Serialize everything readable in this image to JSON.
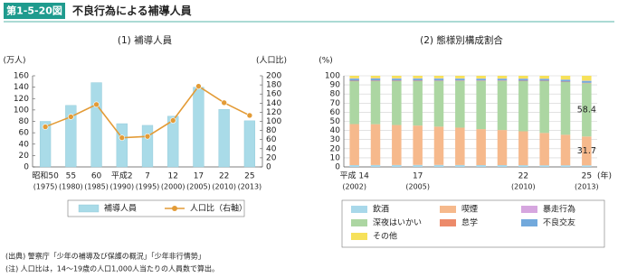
{
  "header": {
    "label": "第1-5-20図",
    "title": "不良行為による補導人員"
  },
  "chart_data": [
    {
      "type": "bar",
      "title": "(1) 補導人員",
      "y_label": "(万人)",
      "y2_label": "(人口比)",
      "categories": [
        "昭和50",
        "55",
        "60",
        "平成2",
        "7",
        "12",
        "17",
        "22",
        "25"
      ],
      "category_years": [
        "(1975)",
        "(1980)",
        "(1985)",
        "(1990)",
        "(1995)",
        "(2000)",
        "(2005)",
        "(2010)",
        "(2013)"
      ],
      "series": [
        {
          "name": "補導人員",
          "type": "bar",
          "color": "#a9dbe8",
          "values": [
            80,
            108,
            148,
            76,
            73,
            89,
            140,
            101,
            81
          ]
        },
        {
          "name": "人口比（右軸）",
          "type": "line",
          "axis": "y2",
          "color": "#e39b36",
          "values": [
            88,
            110,
            137,
            64,
            67,
            102,
            177,
            141,
            113
          ]
        }
      ],
      "ylim": [
        0,
        160
      ],
      "yticks": [
        0,
        20,
        40,
        60,
        80,
        100,
        120,
        140,
        160
      ],
      "y2lim": [
        0,
        200
      ],
      "y2ticks": [
        0,
        20,
        40,
        60,
        80,
        100,
        120,
        140,
        160,
        180,
        200
      ],
      "grid": false
    },
    {
      "type": "bar",
      "stacked": true,
      "title": "(2) 態様別構成割合",
      "y_label": "(%)",
      "x_label": "(年)",
      "categories": [
        "平成 14",
        null,
        null,
        "17",
        null,
        null,
        null,
        null,
        "22",
        null,
        null,
        "25"
      ],
      "category_years": [
        "(2002)",
        null,
        null,
        "(2005)",
        null,
        null,
        null,
        null,
        "(2010)",
        null,
        null,
        "(2013)"
      ],
      "series": [
        {
          "name": "飲酒",
          "color": "#a8d8ea",
          "values": [
            2.0,
            2.1,
            2.1,
            2.2,
            2.2,
            2.1,
            2.0,
            2.0,
            1.9,
            1.8,
            1.8,
            1.7
          ]
        },
        {
          "name": "喫煙",
          "color": "#f6b98c",
          "values": [
            45.0,
            44.8,
            43.9,
            43.2,
            42.0,
            41.0,
            39.5,
            38.5,
            37.2,
            35.5,
            33.5,
            31.7
          ],
          "value_labels": [
            null,
            null,
            null,
            null,
            null,
            null,
            null,
            null,
            null,
            null,
            null,
            "31.7"
          ]
        },
        {
          "name": "深夜はいかい",
          "color": "#acd6a2",
          "values": [
            47.0,
            47.2,
            48.1,
            48.7,
            50.0,
            51.2,
            52.8,
            53.8,
            55.0,
            56.8,
            57.8,
            58.4
          ],
          "value_labels": [
            null,
            null,
            null,
            null,
            null,
            null,
            null,
            null,
            null,
            null,
            null,
            "58.4"
          ]
        },
        {
          "name": "怠学",
          "color": "#ec8a6a",
          "values": [
            0.6,
            0.6,
            0.6,
            0.6,
            0.5,
            0.5,
            0.5,
            0.5,
            0.5,
            0.5,
            0.5,
            0.5
          ]
        },
        {
          "name": "不良交友",
          "color": "#72a9dc",
          "values": [
            2.3,
            2.3,
            2.2,
            2.2,
            2.2,
            2.1,
            2.0,
            2.0,
            2.1,
            2.0,
            2.0,
            2.1
          ]
        },
        {
          "name": "暴走行為",
          "color": "#d6a6df",
          "values": [
            0.4,
            0.4,
            0.4,
            0.4,
            0.4,
            0.3,
            0.3,
            0.3,
            0.3,
            0.3,
            0.3,
            0.3
          ]
        },
        {
          "name": "その他",
          "color": "#f6e15a",
          "values": [
            2.7,
            2.6,
            2.7,
            2.7,
            2.7,
            2.8,
            2.9,
            2.9,
            3.0,
            3.1,
            4.1,
            5.3
          ]
        }
      ],
      "ylim": [
        0,
        100
      ],
      "yticks": [
        0,
        10,
        20,
        30,
        40,
        50,
        60,
        70,
        80,
        90,
        100
      ],
      "grid": true
    }
  ],
  "notes": [
    "(出典)  警察庁「少年の補導及び保護の概況」「少年非行情勢」",
    "(注)  人口比は，14～19歳の人口1,000人当たりの人員数で算出。"
  ]
}
